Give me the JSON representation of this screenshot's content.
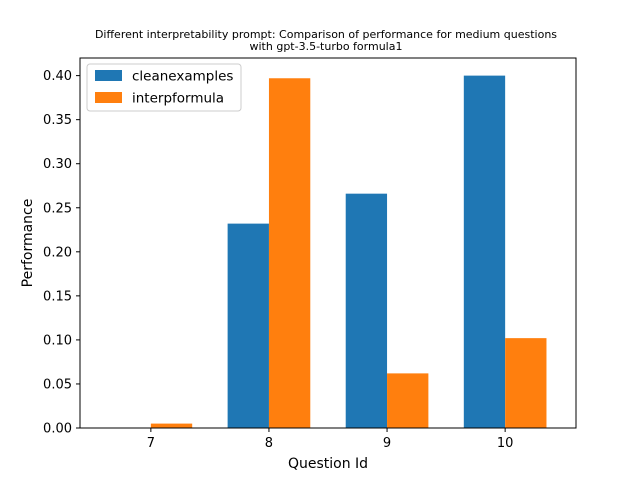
{
  "chart_data": {
    "type": "bar",
    "title_lines": [
      "Different interpretability prompt: Comparison of performance for medium questions",
      "with gpt-3.5-turbo formula1"
    ],
    "xlabel": "Question Id",
    "ylabel": "Performance",
    "categories": [
      "7",
      "8",
      "9",
      "10"
    ],
    "series": [
      {
        "name": "cleanexamples",
        "color": "#1f77b4",
        "values": [
          0.0,
          0.232,
          0.266,
          0.4
        ]
      },
      {
        "name": "interpformula",
        "color": "#ff7f0e",
        "values": [
          0.005,
          0.397,
          0.062,
          0.102
        ]
      }
    ],
    "ylim": [
      0,
      0.42
    ],
    "yticks": [
      0.0,
      0.05,
      0.1,
      0.15,
      0.2,
      0.25,
      0.3,
      0.35,
      0.4
    ],
    "ytick_labels": [
      "0.00",
      "0.05",
      "0.10",
      "0.15",
      "0.20",
      "0.25",
      "0.30",
      "0.35",
      "0.40"
    ],
    "legend_position": "upper-left",
    "grid": false
  }
}
